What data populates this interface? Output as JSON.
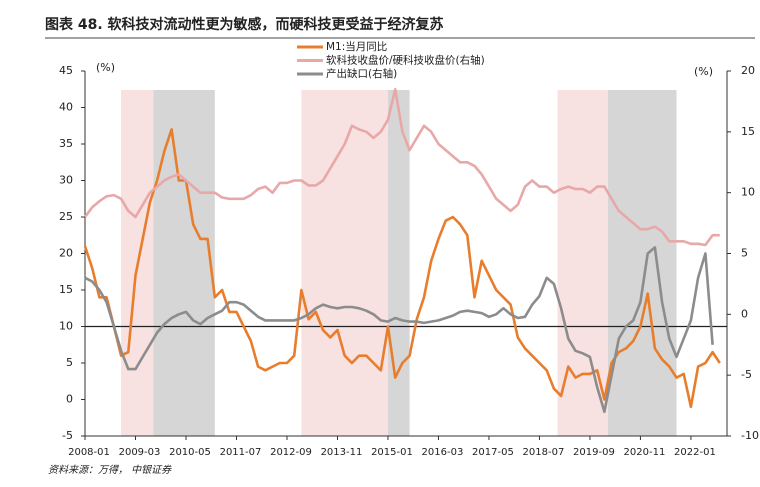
{
  "chart_data": {
    "type": "line",
    "title": "图表 48. 软科技对流动性更为敏感，而硬科技更受益于经济复苏",
    "source": "资料来源：万得， 中银证券",
    "y_unit": "(%)",
    "y2_unit": "(%)",
    "xlim": [
      "2008-01",
      "2022-11"
    ],
    "xticks": [
      "2008-01",
      "2009-03",
      "2010-05",
      "2011-07",
      "2012-09",
      "2013-11",
      "2015-01",
      "2016-03",
      "2017-05",
      "2018-07",
      "2019-09",
      "2020-11",
      "2022-01"
    ],
    "ylim": [
      -5,
      45
    ],
    "yticks": [
      -5,
      0,
      5,
      10,
      15,
      20,
      25,
      30,
      35,
      40,
      45
    ],
    "y2lim": [
      -10,
      20
    ],
    "y2ticks": [
      -10,
      -5,
      0,
      5,
      10,
      15,
      20
    ],
    "reference_line": 10,
    "shaded_periods": [
      {
        "start": "2008-11",
        "end": "2009-08",
        "color": "#f8e1e1"
      },
      {
        "start": "2009-08",
        "end": "2011-01",
        "color": "#d6d6d6"
      },
      {
        "start": "2013-01",
        "end": "2015-01",
        "color": "#f8e1e1"
      },
      {
        "start": "2015-01",
        "end": "2015-07",
        "color": "#d6d6d6"
      },
      {
        "start": "2018-12",
        "end": "2020-02",
        "color": "#f8e1e1"
      },
      {
        "start": "2020-02",
        "end": "2021-09",
        "color": "#d6d6d6"
      }
    ],
    "x": [
      "2008-01",
      "2008-03",
      "2008-05",
      "2008-07",
      "2008-09",
      "2008-11",
      "2009-01",
      "2009-03",
      "2009-05",
      "2009-07",
      "2009-09",
      "2009-11",
      "2010-01",
      "2010-03",
      "2010-05",
      "2010-07",
      "2010-09",
      "2010-11",
      "2011-01",
      "2011-03",
      "2011-05",
      "2011-07",
      "2011-09",
      "2011-11",
      "2012-01",
      "2012-03",
      "2012-05",
      "2012-07",
      "2012-09",
      "2012-11",
      "2013-01",
      "2013-03",
      "2013-05",
      "2013-07",
      "2013-09",
      "2013-11",
      "2014-01",
      "2014-03",
      "2014-05",
      "2014-07",
      "2014-09",
      "2014-11",
      "2015-01",
      "2015-03",
      "2015-05",
      "2015-07",
      "2015-09",
      "2015-11",
      "2016-01",
      "2016-03",
      "2016-05",
      "2016-07",
      "2016-09",
      "2016-11",
      "2017-01",
      "2017-03",
      "2017-05",
      "2017-07",
      "2017-09",
      "2017-11",
      "2018-01",
      "2018-03",
      "2018-05",
      "2018-07",
      "2018-09",
      "2018-11",
      "2019-01",
      "2019-03",
      "2019-05",
      "2019-07",
      "2019-09",
      "2019-11",
      "2020-01",
      "2020-03",
      "2020-05",
      "2020-07",
      "2020-09",
      "2020-11",
      "2021-01",
      "2021-03",
      "2021-05",
      "2021-07",
      "2021-09",
      "2021-11",
      "2022-01",
      "2022-03",
      "2022-05",
      "2022-07",
      "2022-09"
    ],
    "series": [
      {
        "name": "M1:当月同比",
        "color": "#e87d2d",
        "axis": "y",
        "values": [
          21,
          18,
          14,
          14,
          10,
          6,
          6.5,
          17,
          22,
          27,
          30,
          34,
          37,
          30,
          30,
          24,
          22,
          22,
          14,
          15,
          12,
          12,
          10,
          8,
          4.5,
          4,
          4.5,
          5,
          5,
          6,
          15,
          11,
          12,
          9.5,
          8.5,
          9.5,
          6,
          5,
          6,
          6,
          5,
          4,
          10,
          3,
          5,
          6,
          11,
          14,
          19,
          22,
          24.5,
          25,
          24,
          22.5,
          14,
          19,
          17,
          15,
          14,
          13,
          8.5,
          7,
          6,
          5,
          4,
          1.5,
          0.5,
          4.5,
          3,
          3.5,
          3.5,
          4,
          0,
          5,
          6.5,
          7,
          8,
          10,
          14.5,
          7,
          5.5,
          4.5,
          3,
          3.5,
          -1,
          4.5,
          5,
          6.5,
          5
        ]
      },
      {
        "name": "软科技收盘价/硬科技收盘价(右轴)",
        "color": "#e8a8a8",
        "axis": "y2",
        "values": [
          8,
          8.8,
          9.3,
          9.7,
          9.8,
          9.5,
          8.5,
          8,
          9,
          10,
          10.5,
          11,
          11.3,
          11.5,
          11,
          10.5,
          10,
          10,
          10,
          9.6,
          9.5,
          9.5,
          9.5,
          9.8,
          10.3,
          10.5,
          10,
          10.8,
          10.8,
          11,
          11,
          10.6,
          10.6,
          11,
          12,
          13,
          14,
          15.5,
          15.2,
          15,
          14.5,
          15,
          16,
          18.5,
          15,
          13.5,
          14.5,
          15.5,
          15,
          14,
          13.5,
          13,
          12.5,
          12.5,
          12.2,
          11.5,
          10.5,
          9.5,
          9,
          8.5,
          9,
          10.5,
          11,
          10.5,
          10.5,
          10,
          10.3,
          10.5,
          10.3,
          10.3,
          10,
          10.5,
          10.5,
          9.5,
          8.5,
          8,
          7.5,
          7,
          7,
          7.2,
          6.8,
          6,
          6,
          6,
          5.8,
          5.8,
          5.7,
          6.5,
          6.5
        ]
      },
      {
        "name": "产出缺口(右轴)",
        "color": "#8c8c8c",
        "axis": "y2",
        "values": [
          3,
          2.7,
          2,
          1,
          -1,
          -3,
          -4.5,
          -4.5,
          -3.5,
          -2.5,
          -1.5,
          -0.8,
          -0.3,
          0,
          0.2,
          -0.5,
          -0.8,
          -0.3,
          0,
          0.3,
          1,
          1,
          0.8,
          0.3,
          -0.2,
          -0.5,
          -0.5,
          -0.5,
          -0.5,
          -0.5,
          -0.3,
          0,
          0.5,
          0.8,
          0.6,
          0.5,
          0.6,
          0.6,
          0.5,
          0.3,
          0,
          -0.5,
          -0.6,
          -0.3,
          -0.5,
          -0.6,
          -0.6,
          -0.7,
          -0.6,
          -0.5,
          -0.3,
          -0.1,
          0.2,
          0.3,
          0.2,
          0.1,
          -0.2,
          0,
          0.5,
          0,
          -0.3,
          -0.2,
          0.8,
          1.5,
          3,
          2.5,
          0.5,
          -2,
          -3,
          -3.2,
          -3.5,
          -6,
          -8,
          -5,
          -2,
          -1,
          -0.5,
          1,
          5,
          5.5,
          1,
          -2,
          -3.5,
          -2,
          -0.5,
          3,
          5,
          -2.5,
          null
        ]
      }
    ]
  }
}
